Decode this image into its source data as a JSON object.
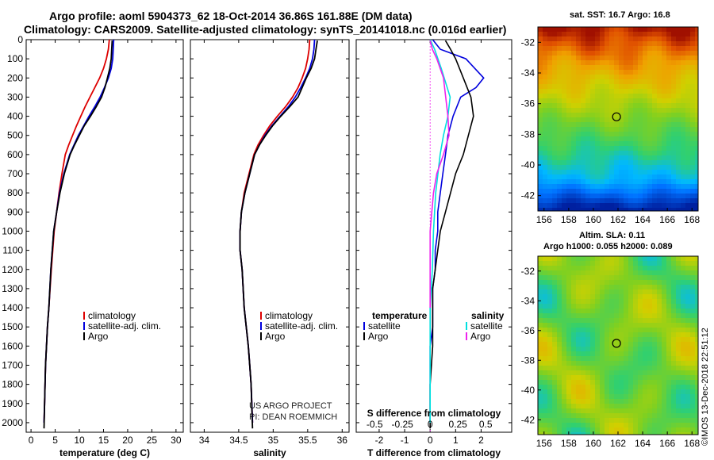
{
  "title_line1": "Argo profile: aoml 5904373_62 18-Oct-2014 36.86S 161.88E (DM data)",
  "title_line2": "Climatology: CARS2009. Satellite-adjusted climatology: synTS_20141018.nc (0.016d earlier)",
  "sst_map_title": "sat. SST: 16.7 Argo: 16.8",
  "sla_map_title_1": "Altim. SLA: 0.11",
  "sla_map_title_2": "Argo h1000: 0.055 h2000: 0.089",
  "credit": "©IMOS 13-Dec-2018 22:51:12",
  "watermark_1": "US ARGO PROJECT",
  "watermark_2": "PI: DEAN ROEMMICH",
  "colors": {
    "climatology": "#dd0000",
    "satellite": "#0000dd",
    "argo": "#000000",
    "sat_salinity": "#00e0e0",
    "argo_salinity": "#ee22ee"
  },
  "chart_data": [
    {
      "id": "temperature",
      "type": "line",
      "xlabel": "temperature (deg C)",
      "ylabel": "",
      "xlim": [
        -1,
        31.5
      ],
      "ylim": [
        2050,
        0
      ],
      "xticks": [
        0,
        5,
        10,
        15,
        20,
        25,
        30
      ],
      "yticks": [
        0,
        100,
        200,
        300,
        400,
        500,
        600,
        700,
        800,
        900,
        1000,
        1100,
        1200,
        1300,
        1400,
        1500,
        1600,
        1700,
        1800,
        1900,
        2000
      ],
      "legend": [
        "climatology",
        "satellite-adj. clim.",
        "Argo"
      ],
      "series": [
        {
          "name": "climatology",
          "color": "#dd0000",
          "x": [
            16.2,
            16.0,
            15.6,
            15.0,
            14.2,
            13.2,
            12.2,
            11.2,
            10.3,
            9.4,
            8.6,
            7.8,
            7.1,
            6.4,
            5.8,
            5.3,
            4.8,
            4.2,
            3.7,
            3.4,
            3.2,
            3.0,
            2.9,
            2.8,
            2.7
          ],
          "y": [
            0,
            50,
            100,
            150,
            200,
            250,
            300,
            350,
            400,
            450,
            500,
            550,
            600,
            700,
            800,
            900,
            1000,
            1200,
            1400,
            1500,
            1600,
            1700,
            1800,
            1900,
            2000
          ]
        },
        {
          "name": "satellite-adj. clim.",
          "color": "#0000dd",
          "x": [
            17.1,
            17.0,
            16.9,
            16.6,
            16.0,
            15.2,
            14.3,
            13.2,
            12.0,
            10.9,
            9.8,
            8.9,
            8.0,
            6.8,
            5.9,
            5.3,
            4.7,
            4.1,
            3.7,
            3.4,
            3.2,
            3.0,
            2.9,
            2.8,
            2.7
          ],
          "y": [
            0,
            50,
            100,
            150,
            200,
            250,
            300,
            350,
            400,
            450,
            500,
            550,
            600,
            700,
            800,
            900,
            1000,
            1200,
            1400,
            1500,
            1600,
            1700,
            1800,
            1900,
            2000
          ]
        },
        {
          "name": "Argo",
          "color": "#000000",
          "x": [
            16.8,
            16.7,
            16.6,
            16.3,
            15.8,
            15.3,
            14.6,
            13.5,
            12.3,
            11.0,
            10.0,
            9.0,
            8.1,
            6.9,
            6.0,
            5.3,
            4.7,
            4.1,
            3.7,
            3.4,
            3.2,
            3.0,
            2.9,
            2.8,
            2.7
          ],
          "y": [
            5,
            50,
            100,
            150,
            200,
            250,
            300,
            350,
            400,
            450,
            500,
            550,
            600,
            700,
            800,
            900,
            1000,
            1200,
            1400,
            1500,
            1600,
            1700,
            1800,
            1900,
            2030
          ]
        }
      ]
    },
    {
      "id": "salinity",
      "type": "line",
      "xlabel": "salinity",
      "ylabel": "",
      "xlim": [
        33.8,
        36.1
      ],
      "ylim": [
        2050,
        0
      ],
      "xticks": [
        34,
        34.5,
        35,
        35.5,
        36
      ],
      "xticklabels": [
        "34",
        "34.5",
        "35",
        "35.5",
        "36"
      ],
      "legend": [
        "climatology",
        "satellite-adj. clim.",
        "Argo"
      ],
      "series": [
        {
          "name": "climatology",
          "color": "#dd0000",
          "x": [
            35.53,
            35.52,
            35.5,
            35.47,
            35.42,
            35.36,
            35.28,
            35.18,
            35.06,
            34.95,
            34.86,
            34.78,
            34.72,
            34.65,
            34.58,
            34.54,
            34.52,
            34.52,
            34.55,
            34.58,
            34.61,
            34.64,
            34.66,
            34.68,
            34.7
          ],
          "y": [
            0,
            50,
            100,
            150,
            200,
            250,
            300,
            350,
            400,
            450,
            500,
            550,
            600,
            700,
            800,
            900,
            1000,
            1100,
            1200,
            1400,
            1500,
            1600,
            1700,
            1800,
            2000
          ]
        },
        {
          "name": "satellite-adj. clim.",
          "color": "#0000dd",
          "x": [
            35.6,
            35.59,
            35.57,
            35.53,
            35.47,
            35.4,
            35.32,
            35.22,
            35.1,
            34.98,
            34.88,
            34.8,
            34.73,
            34.66,
            34.59,
            34.54,
            34.52,
            34.52,
            34.55,
            34.58,
            34.61,
            34.64,
            34.66,
            34.68,
            34.7
          ],
          "y": [
            0,
            50,
            100,
            150,
            200,
            250,
            300,
            350,
            400,
            450,
            500,
            550,
            600,
            700,
            800,
            900,
            1000,
            1100,
            1200,
            1400,
            1500,
            1600,
            1700,
            1800,
            2000
          ]
        },
        {
          "name": "Argo",
          "color": "#000000",
          "x": [
            35.64,
            35.62,
            35.6,
            35.55,
            35.48,
            35.42,
            35.36,
            35.24,
            35.11,
            34.99,
            34.89,
            34.8,
            34.73,
            34.66,
            34.59,
            34.54,
            34.52,
            34.52,
            34.55,
            34.58,
            34.61,
            34.64,
            34.66,
            34.68,
            34.7
          ],
          "y": [
            5,
            50,
            100,
            150,
            200,
            250,
            300,
            350,
            400,
            450,
            500,
            550,
            600,
            700,
            800,
            900,
            1000,
            1100,
            1200,
            1400,
            1500,
            1600,
            1700,
            1800,
            2030
          ]
        }
      ]
    },
    {
      "id": "difference",
      "type": "line",
      "xlabel": "T difference from climatology",
      "xlabel_top": "S difference from climatology",
      "xlim": [
        -2.9,
        3.2
      ],
      "ylim": [
        2050,
        0
      ],
      "xticks": [
        -2,
        -1,
        0,
        1,
        2
      ],
      "sticks": [
        -0.5,
        -0.25,
        0,
        0.25,
        0.5
      ],
      "sticklabels": [
        "-0.5",
        "-0.25",
        "0",
        "0.25",
        "0.5"
      ],
      "legend_left_title": "temperature",
      "legend_right_title": "salinity",
      "legend_left": [
        "satellite",
        "Argo"
      ],
      "legend_right": [
        "satellite",
        "Argo"
      ],
      "series": [
        {
          "name": "satellite (temperature)",
          "color": "#0000dd",
          "x": [
            0.1,
            0.4,
            1.4,
            2.1,
            1.8,
            1.2,
            0.9,
            0.7,
            0.6,
            0.5,
            0.4,
            0.3,
            0.3,
            0.2,
            0.2,
            0.1,
            0.1,
            0.1,
            0.0,
            0.0,
            0.0
          ],
          "y": [
            0,
            50,
            100,
            200,
            250,
            300,
            400,
            500,
            600,
            700,
            800,
            900,
            1000,
            1100,
            1200,
            1300,
            1400,
            1500,
            1600,
            1800,
            2000
          ]
        },
        {
          "name": "Argo (temperature)",
          "color": "#000000",
          "x": [
            0.6,
            0.8,
            1.0,
            1.3,
            1.6,
            1.7,
            1.5,
            1.3,
            1.0,
            0.8,
            0.6,
            0.4,
            0.3,
            0.2,
            0.1,
            0.1,
            0.1,
            0.0,
            0.0
          ],
          "y": [
            5,
            50,
            100,
            200,
            300,
            400,
            500,
            600,
            700,
            800,
            900,
            1000,
            1100,
            1200,
            1300,
            1400,
            1600,
            1800,
            2030
          ]
        },
        {
          "name": "satellite (salinity)",
          "color": "#00e0e0",
          "x": [
            0.0,
            0.04,
            0.1,
            0.18,
            0.16,
            0.12,
            0.09,
            0.07,
            0.05,
            0.04,
            0.03,
            0.02,
            0.0,
            0.0,
            0.0
          ],
          "y": [
            0,
            50,
            150,
            300,
            400,
            500,
            600,
            700,
            800,
            900,
            1000,
            1200,
            1400,
            1600,
            2000
          ]
        },
        {
          "name": "Argo (salinity)",
          "color": "#ee22ee",
          "x": [
            0.0,
            0.02,
            0.06,
            0.12,
            0.14,
            0.16,
            0.17,
            0.12,
            0.06,
            0.03,
            0.0,
            0.0
          ],
          "y": [
            5,
            50,
            100,
            200,
            300,
            400,
            500,
            600,
            700,
            800,
            1000,
            1400
          ]
        }
      ]
    },
    {
      "id": "sst-map",
      "type": "heatmap",
      "title": "sat. SST: 16.7 Argo: 16.8",
      "xlim": [
        155.5,
        168.5
      ],
      "ylim": [
        -43,
        -31
      ],
      "xticks": [
        156,
        158,
        160,
        162,
        164,
        166,
        168
      ],
      "yticks": [
        -32,
        -34,
        -36,
        -38,
        -40,
        -42
      ],
      "marker": {
        "lon": 161.88,
        "lat": -36.86
      }
    },
    {
      "id": "sla-map",
      "type": "heatmap",
      "title": "Altim. SLA: 0.11",
      "xlim": [
        155.5,
        168.5
      ],
      "ylim": [
        -43,
        -31
      ],
      "xticks": [
        156,
        158,
        160,
        162,
        164,
        166,
        168
      ],
      "yticks": [
        -32,
        -34,
        -36,
        -38,
        -40,
        -42
      ],
      "marker": {
        "lon": 161.88,
        "lat": -36.86
      }
    }
  ]
}
